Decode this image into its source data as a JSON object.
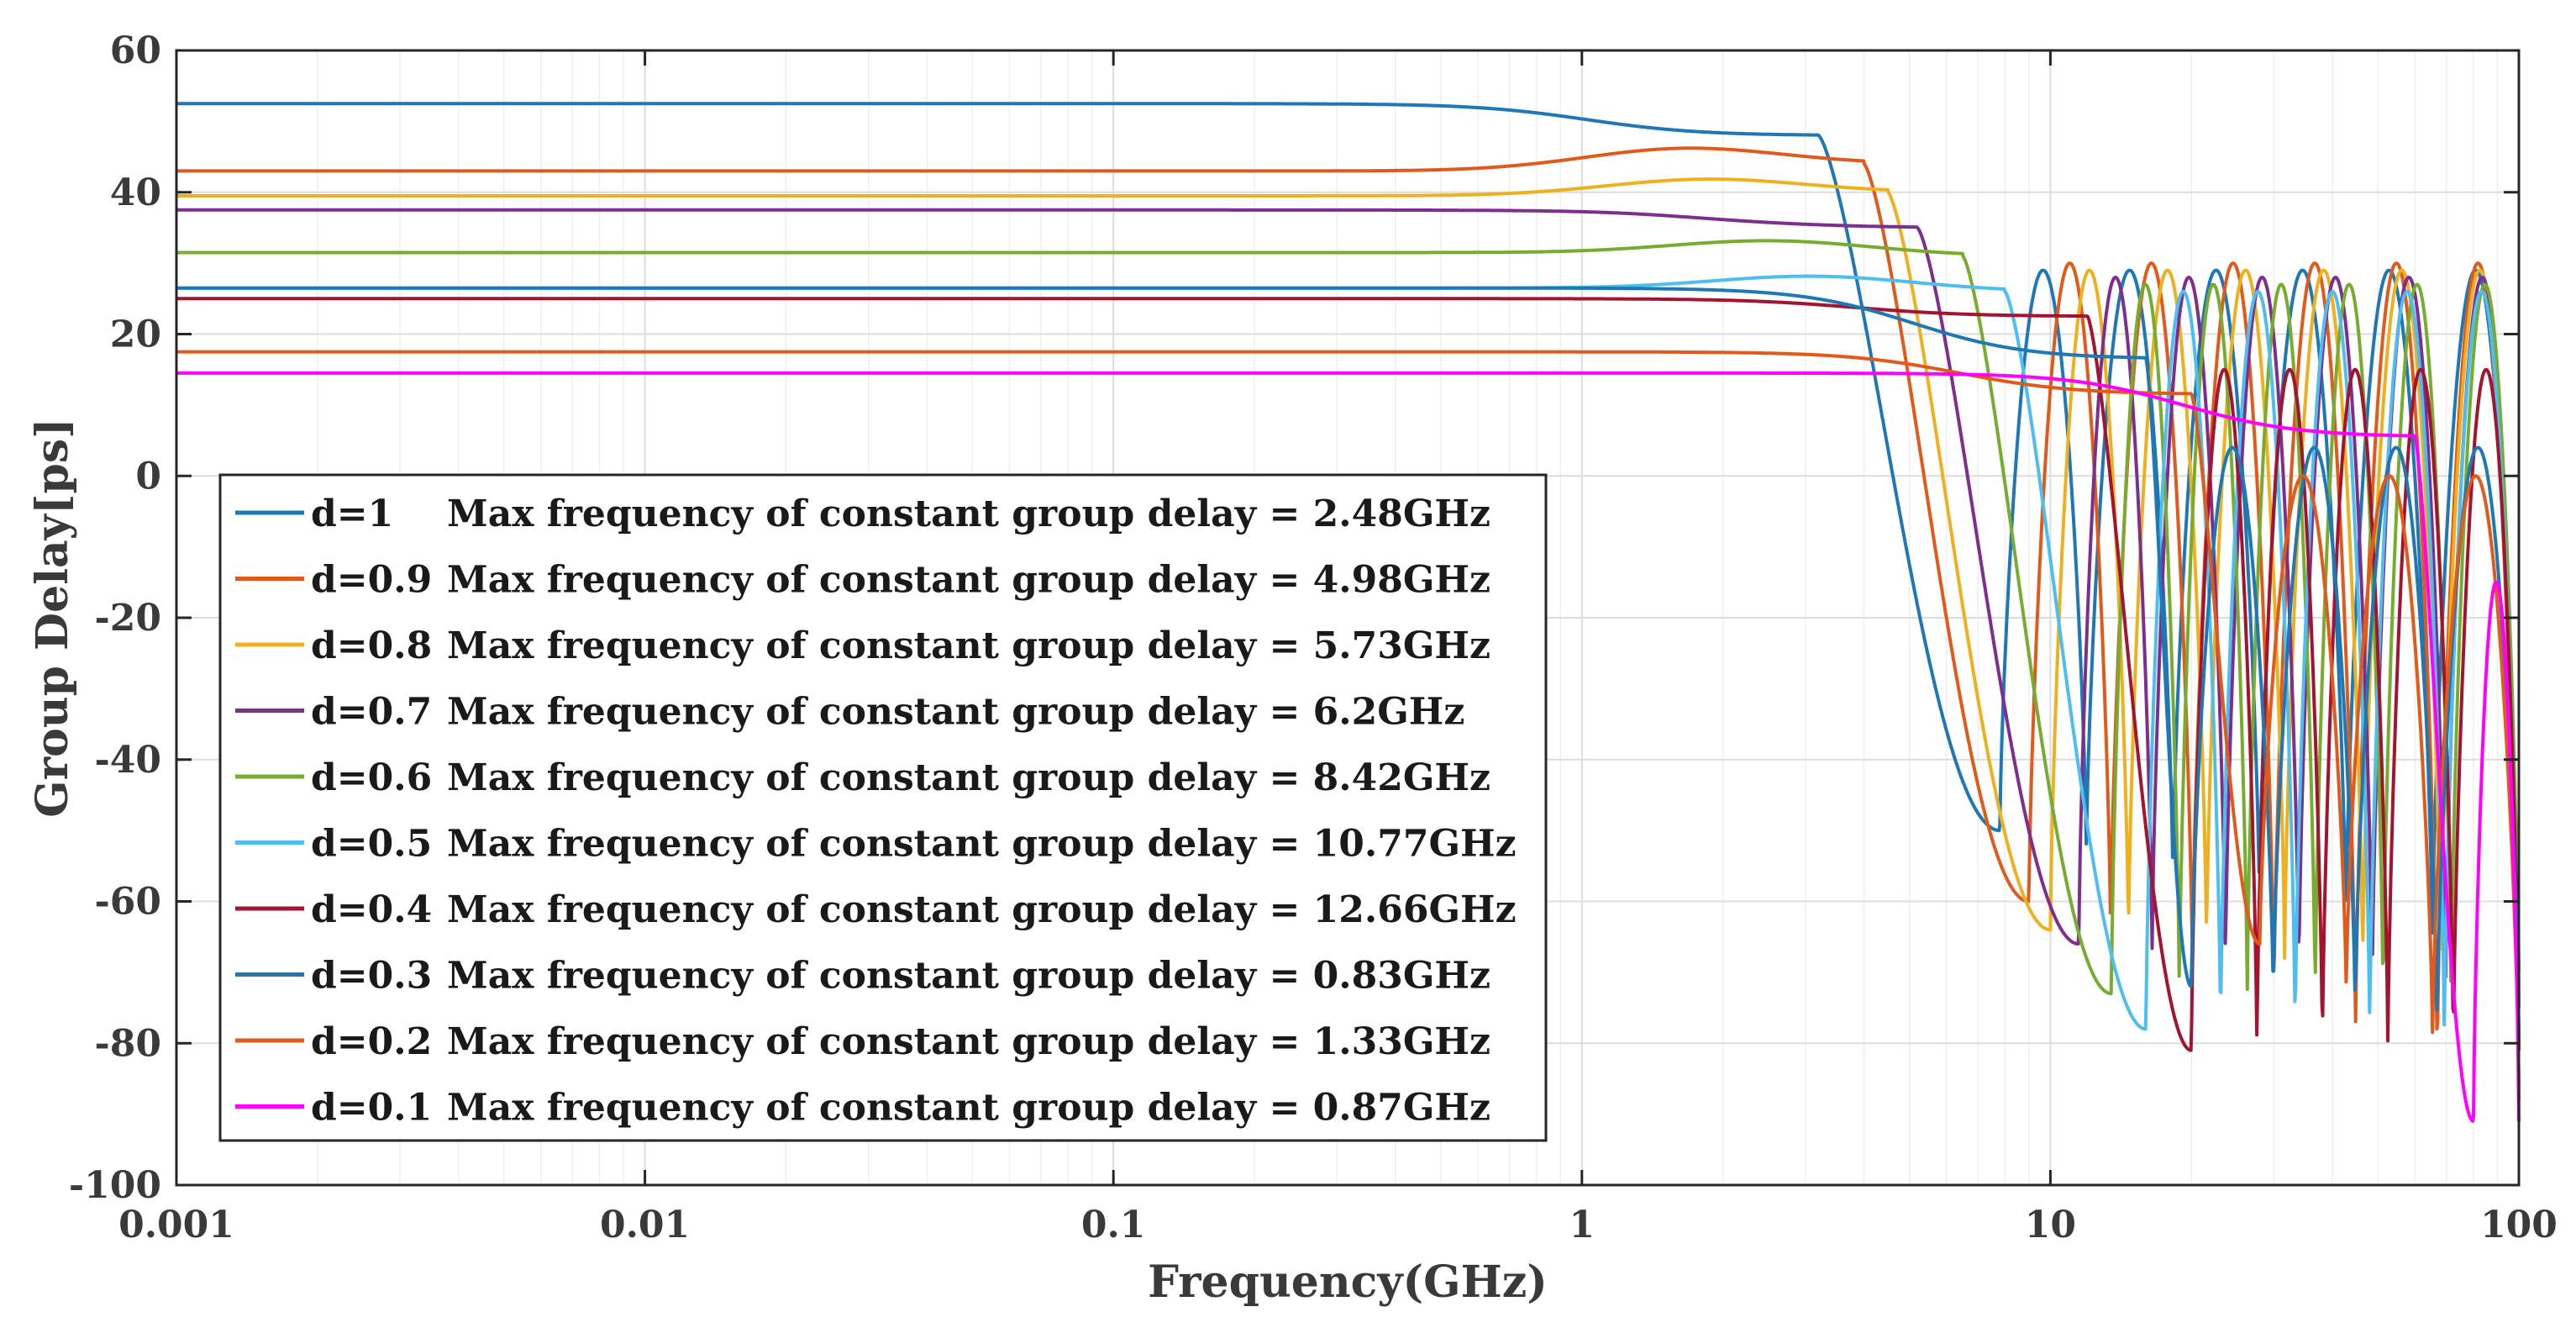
{
  "chart_data": {
    "type": "line",
    "xscale": "log",
    "xlim": [
      0.001,
      100
    ],
    "ylim": [
      -100,
      60
    ],
    "xlabel": "Frequency(GHz)",
    "ylabel": "Group Delay[ps]",
    "xticks": [
      0.001,
      0.01,
      0.1,
      1,
      10,
      100
    ],
    "xtick_labels": [
      "0.001",
      "0.01",
      "0.1",
      "1",
      "10",
      "100"
    ],
    "yticks": [
      -100,
      -80,
      -60,
      -40,
      -20,
      0,
      20,
      40,
      60
    ],
    "ytick_labels": [
      "-100",
      "-80",
      "-60",
      "-40",
      "-20",
      "0",
      "20",
      "40",
      "60"
    ],
    "grid": true,
    "legend_position": "lower-left",
    "series": [
      {
        "name": "d=1",
        "label": "Max frequency of constant group delay = 2.48GHz",
        "color": "#1f77b4",
        "dc_delay": 52.5,
        "hump_delay": 52.5,
        "settle_delay": 48,
        "rolloff_ghz": 3.2,
        "first_dip_ghz": 7.8,
        "first_dip_value": -50,
        "hf_offset": 0,
        "hf_amplitude": 29,
        "hf_cycles": 6,
        "floor_value": -70
      },
      {
        "name": "d=0.9",
        "label": "Max frequency of constant group delay = 4.98GHz",
        "color": "#e05a1c",
        "dc_delay": 43,
        "hump_delay": 46.5,
        "settle_delay": 44,
        "rolloff_ghz": 4.0,
        "first_dip_ghz": 9.0,
        "first_dip_value": -60,
        "hf_offset": 0,
        "hf_amplitude": 30,
        "hf_cycles": 6,
        "floor_value": -88
      },
      {
        "name": "d=0.8",
        "label": "Max frequency of constant group delay = 5.73GHz",
        "color": "#edb120",
        "dc_delay": 39.5,
        "hump_delay": 42,
        "settle_delay": 40,
        "rolloff_ghz": 4.5,
        "first_dip_ghz": 10.0,
        "first_dip_value": -64,
        "hf_offset": 0,
        "hf_amplitude": 29,
        "hf_cycles": 6,
        "floor_value": -72
      },
      {
        "name": "d=0.7",
        "label": "Max frequency of constant group delay = 6.2GHz",
        "color": "#7e2f8e",
        "dc_delay": 37.5,
        "hump_delay": 37.8,
        "settle_delay": 35,
        "rolloff_ghz": 5.2,
        "first_dip_ghz": 11.5,
        "first_dip_value": -66,
        "hf_offset": 0,
        "hf_amplitude": 28,
        "hf_cycles": 6,
        "floor_value": -75
      },
      {
        "name": "d=0.6",
        "label": "Max frequency of constant group delay = 8.42GHz",
        "color": "#77ac30",
        "dc_delay": 31.5,
        "hump_delay": 33.5,
        "settle_delay": 31,
        "rolloff_ghz": 6.5,
        "first_dip_ghz": 13.5,
        "first_dip_value": -73,
        "hf_offset": 0,
        "hf_amplitude": 27,
        "hf_cycles": 6,
        "floor_value": -75
      },
      {
        "name": "d=0.5",
        "label": "Max frequency of constant group delay = 10.77GHz",
        "color": "#4dbeee",
        "dc_delay": 26.5,
        "hump_delay": 28.5,
        "settle_delay": 26,
        "rolloff_ghz": 8.0,
        "first_dip_ghz": 16.0,
        "first_dip_value": -78,
        "hf_offset": 0,
        "hf_amplitude": 26,
        "hf_cycles": 5,
        "floor_value": -80
      },
      {
        "name": "d=0.4",
        "label": "Max frequency of constant group delay = 12.66GHz",
        "color": "#a2142f",
        "dc_delay": 25,
        "hump_delay": 25,
        "settle_delay": 22.5,
        "rolloff_ghz": 12.0,
        "first_dip_ghz": 20.0,
        "first_dip_value": -81,
        "hf_offset": -5,
        "hf_amplitude": 20,
        "hf_cycles": 5,
        "floor_value": -81
      },
      {
        "name": "d=0.3",
        "label": "Max frequency of constant group delay = 0.83GHz",
        "color": "#1f77b4",
        "dc_delay": 26.5,
        "hump_delay": 26.5,
        "settle_delay": 16.5,
        "rolloff_ghz": 16.0,
        "first_dip_ghz": 20.0,
        "first_dip_value": -72,
        "hf_offset": -8,
        "hf_amplitude": 12,
        "hf_cycles": 4,
        "floor_value": -79
      },
      {
        "name": "d=0.2",
        "label": "Max frequency of constant group delay = 1.33GHz",
        "color": "#e05a1c",
        "dc_delay": 17.5,
        "hump_delay": 17.5,
        "settle_delay": 11.5,
        "rolloff_ghz": 20.0,
        "first_dip_ghz": 28.0,
        "first_dip_value": -66,
        "hf_offset": -10,
        "hf_amplitude": 10,
        "hf_cycles": 3,
        "floor_value": -86
      },
      {
        "name": "d=0.1",
        "label": "Max frequency of constant group delay = 0.87GHz",
        "color": "#ff00ff",
        "dc_delay": 14.5,
        "hump_delay": 14.5,
        "settle_delay": 5.5,
        "rolloff_ghz": 60.0,
        "first_dip_ghz": 80.0,
        "first_dip_value": -91,
        "hf_offset": -20,
        "hf_amplitude": 5,
        "hf_cycles": 1,
        "floor_value": -91
      }
    ]
  }
}
